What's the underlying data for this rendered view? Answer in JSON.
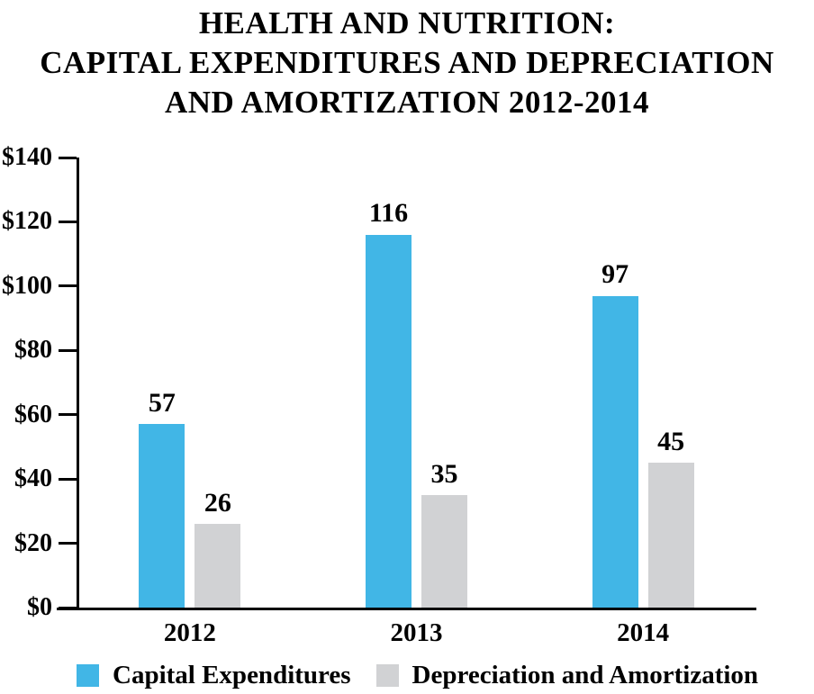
{
  "title": {
    "lines": [
      "HEALTH AND NUTRITION:",
      "CAPITAL EXPENDITURES AND DEPRECIATION",
      "AND AMORTIZATION 2012-2014"
    ]
  },
  "chart_data": {
    "type": "bar",
    "title": "HEALTH AND NUTRITION: CAPITAL EXPENDITURES AND DEPRECIATION AND AMORTIZATION 2012-2014",
    "categories": [
      "2012",
      "2013",
      "2014"
    ],
    "series": [
      {
        "name": "Capital Expenditures",
        "color": "#41b6e6",
        "values": [
          57,
          116,
          97
        ]
      },
      {
        "name": "Depreciation and Amortization",
        "color": "#d1d2d4",
        "values": [
          26,
          35,
          45
        ]
      }
    ],
    "xlabel": "",
    "ylabel": "",
    "ylim": [
      0,
      140
    ],
    "ytick_step": 20,
    "ytick_prefix": "$",
    "ytick_labels": [
      "$0",
      "$20",
      "$40",
      "$60",
      "$80",
      "$100",
      "$120",
      "$140"
    ],
    "bar_value_labels": [
      [
        57,
        116,
        97
      ],
      [
        26,
        35,
        45
      ]
    ],
    "grid": false,
    "legend_position": "bottom",
    "axis_color": "#000000",
    "text_color": "#000000",
    "background_color": "#ffffff"
  }
}
